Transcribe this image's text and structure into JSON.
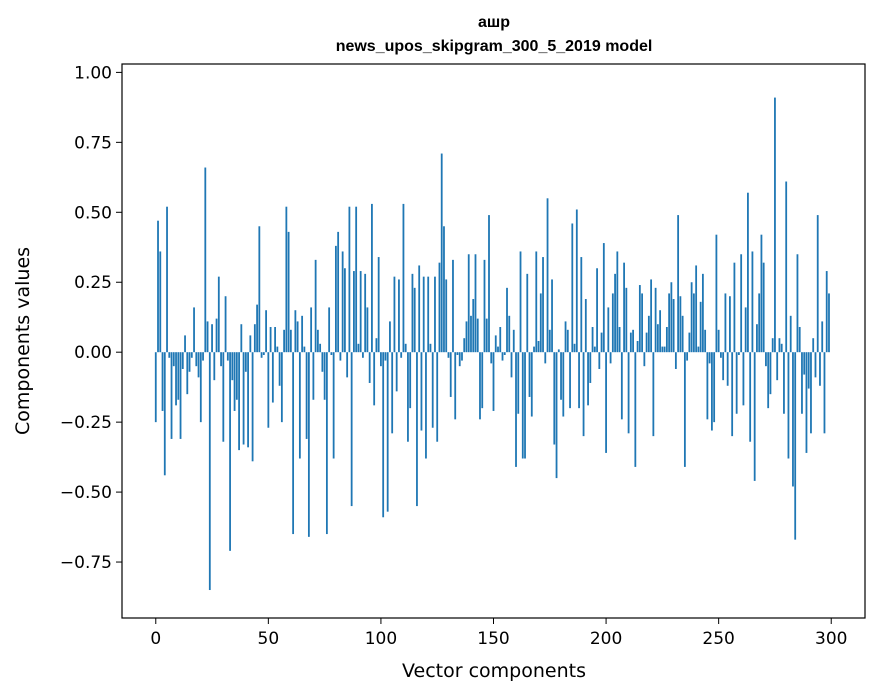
{
  "chart_data": {
    "type": "bar",
    "title_lines": [
      "ашр",
      "news_upos_skipgram_300_5_2019 model"
    ],
    "xlabel": "Vector components",
    "ylabel": "Components values",
    "xlim": [
      -15,
      315
    ],
    "ylim": [
      -0.95,
      1.03
    ],
    "xticks": [
      0,
      50,
      100,
      150,
      200,
      250,
      300
    ],
    "yticks": [
      -0.75,
      -0.5,
      -0.25,
      0.0,
      0.25,
      0.5,
      0.75,
      1.0
    ],
    "xtick_labels": [
      "0",
      "50",
      "100",
      "150",
      "200",
      "250",
      "300"
    ],
    "ytick_labels": [
      "−0.75",
      "−0.50",
      "−0.25",
      "0.00",
      "0.25",
      "0.50",
      "0.75",
      "1.00"
    ],
    "grid": false,
    "legend": "none",
    "bar_color": "#1f77b4",
    "x": "0..299",
    "values": [
      -0.25,
      0.47,
      0.36,
      -0.21,
      -0.44,
      0.52,
      -0.02,
      -0.31,
      -0.05,
      -0.19,
      -0.17,
      -0.31,
      -0.06,
      0.06,
      -0.15,
      -0.07,
      -0.02,
      0.16,
      -0.05,
      -0.09,
      -0.25,
      -0.03,
      0.66,
      0.11,
      -0.85,
      0.1,
      -0.1,
      0.12,
      0.27,
      -0.05,
      -0.32,
      0.2,
      -0.03,
      -0.71,
      -0.1,
      -0.21,
      -0.17,
      -0.35,
      0.1,
      -0.33,
      -0.07,
      -0.34,
      0.06,
      -0.39,
      0.1,
      0.17,
      0.45,
      -0.02,
      -0.01,
      0.15,
      -0.27,
      0.09,
      -0.18,
      0.09,
      0.02,
      -0.12,
      -0.25,
      0.08,
      0.52,
      0.43,
      0.08,
      -0.65,
      0.15,
      0.11,
      -0.38,
      0.13,
      0.02,
      -0.31,
      -0.66,
      0.16,
      -0.17,
      0.33,
      0.08,
      0.03,
      -0.07,
      -0.17,
      -0.65,
      0.16,
      -0.01,
      -0.38,
      0.38,
      0.43,
      -0.03,
      0.36,
      0.3,
      -0.09,
      0.52,
      -0.55,
      0.29,
      0.52,
      0.03,
      0.29,
      -0.02,
      0.28,
      0.16,
      -0.11,
      0.53,
      -0.19,
      0.05,
      0.34,
      -0.05,
      -0.59,
      -0.03,
      -0.57,
      0.11,
      -0.29,
      0.27,
      -0.14,
      0.26,
      -0.02,
      0.53,
      0.03,
      -0.32,
      -0.2,
      0.28,
      0.23,
      -0.55,
      0.31,
      -0.28,
      0.27,
      -0.38,
      0.27,
      0.03,
      -0.27,
      0.27,
      -0.32,
      0.32,
      0.71,
      0.45,
      0.26,
      -0.02,
      -0.16,
      0.33,
      -0.24,
      -0.01,
      -0.05,
      -0.03,
      0.05,
      0.11,
      0.35,
      0.13,
      0.19,
      0.35,
      0.12,
      -0.24,
      -0.2,
      0.33,
      0.12,
      0.49,
      -0.04,
      -0.21,
      0.06,
      0.02,
      0.09,
      -0.03,
      -0.01,
      0.23,
      0.13,
      -0.09,
      0.08,
      -0.41,
      -0.22,
      0.36,
      -0.38,
      -0.38,
      0.28,
      -0.16,
      -0.23,
      0.02,
      0.36,
      0.04,
      0.21,
      0.34,
      -0.04,
      0.55,
      0.08,
      0.26,
      -0.33,
      -0.45,
      0.01,
      -0.17,
      -0.23,
      0.11,
      0.08,
      -0.2,
      0.46,
      0.03,
      0.51,
      -0.2,
      0.34,
      -0.3,
      0.19,
      -0.19,
      -0.11,
      0.09,
      0.02,
      0.3,
      -0.06,
      0.07,
      0.39,
      -0.36,
      0.16,
      -0.04,
      0.21,
      0.28,
      0.36,
      0.09,
      -0.24,
      0.32,
      0.23,
      -0.29,
      0.07,
      0.08,
      -0.41,
      0.04,
      0.24,
      0.21,
      -0.05,
      0.07,
      0.13,
      0.26,
      -0.3,
      0.23,
      0.1,
      0.15,
      0.02,
      0.02,
      0.09,
      0.21,
      0.25,
      0.19,
      -0.06,
      0.49,
      0.2,
      0.13,
      -0.41,
      -0.03,
      0.07,
      0.25,
      0.21,
      0.31,
      0.02,
      0.18,
      0.28,
      0.08,
      -0.24,
      -0.04,
      -0.28,
      -0.25,
      0.42,
      0.08,
      -0.02,
      -0.1,
      0.21,
      -0.12,
      0.2,
      -0.3,
      0.32,
      -0.22,
      -0.01,
      0.35,
      -0.19,
      0.16,
      0.57,
      -0.32,
      0.36,
      -0.46,
      0.1,
      0.21,
      0.42,
      0.32,
      -0.05,
      -0.2,
      -0.15,
      0.05,
      0.91,
      -0.1,
      0.05,
      0.03,
      -0.22,
      0.61,
      -0.38,
      0.13,
      -0.48,
      -0.67,
      0.35,
      0.09,
      -0.22,
      -0.08,
      -0.36,
      -0.13,
      -0.29,
      0.05,
      -0.09,
      0.49,
      -0.12,
      0.11,
      -0.29,
      0.29,
      0.21
    ]
  }
}
